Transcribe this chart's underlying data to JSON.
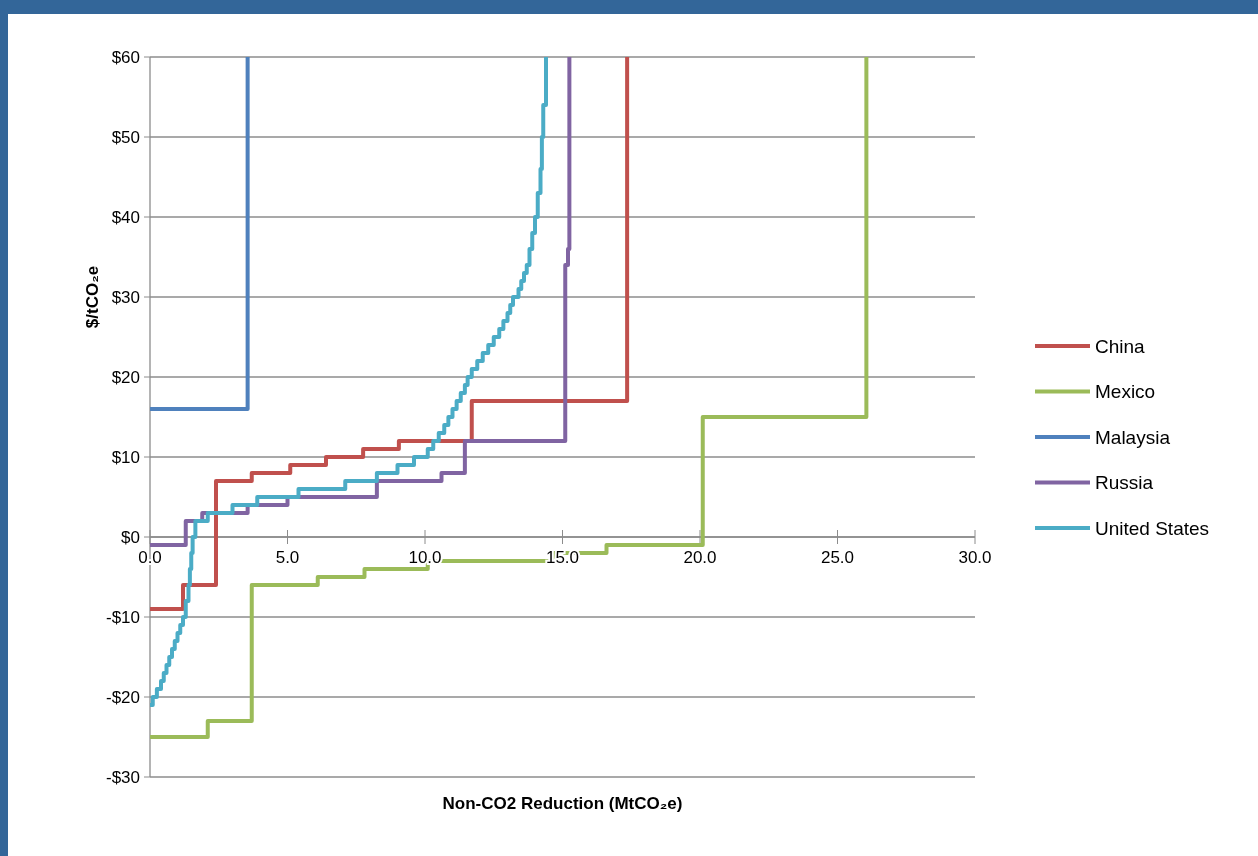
{
  "chart_data": {
    "type": "step",
    "xlabel": "Non-CO2 Reduction (MtCO₂e)",
    "ylabel": "$/tCO₂e",
    "xlim": [
      0,
      30
    ],
    "xticks": [
      {
        "value": 0,
        "label": "0.0"
      },
      {
        "value": 5,
        "label": "5.0"
      },
      {
        "value": 10,
        "label": "10.0"
      },
      {
        "value": 15,
        "label": "15.0"
      },
      {
        "value": 20,
        "label": "20.0"
      },
      {
        "value": 25,
        "label": "25.0"
      },
      {
        "value": 30,
        "label": "30.0"
      }
    ],
    "ylim": [
      -30,
      60
    ],
    "yticks": [
      {
        "value": -30,
        "label": "-$30"
      },
      {
        "value": -20,
        "label": "-$20"
      },
      {
        "value": -10,
        "label": "-$10"
      },
      {
        "value": 0,
        "label": "$0"
      },
      {
        "value": 10,
        "label": "$10"
      },
      {
        "value": 20,
        "label": "$20"
      },
      {
        "value": 30,
        "label": "$30"
      },
      {
        "value": 40,
        "label": "$40"
      },
      {
        "value": 50,
        "label": "$50"
      },
      {
        "value": 60,
        "label": "$60"
      }
    ],
    "grid": "y",
    "legend": "right",
    "series": [
      {
        "name": "China",
        "color": "#c0504d",
        "x": [
          0,
          1.2,
          2.4,
          3.7,
          5.1,
          6.4,
          7.75,
          9.05,
          11.7,
          17.35
        ],
        "values": [
          -9,
          -6,
          7,
          8,
          9,
          10,
          11,
          12,
          17,
          60
        ]
      },
      {
        "name": "Mexico",
        "color": "#9bbb59",
        "x": [
          0,
          2.1,
          3.7,
          6.1,
          7.8,
          10.1,
          14.7,
          16.6,
          20.1,
          26.05
        ],
        "values": [
          -25,
          -23,
          -6,
          -5,
          -4,
          -3,
          -2,
          -1,
          15,
          60
        ]
      },
      {
        "name": "Malaysia",
        "color": "#4f81bd",
        "x": [
          0,
          3.55
        ],
        "values": [
          16,
          60
        ]
      },
      {
        "name": "Russia",
        "color": "#8064a2",
        "x": [
          0,
          1.3,
          1.9,
          3.55,
          5.0,
          8.25,
          10.6,
          11.45,
          15.1,
          15.2,
          15.25
        ],
        "values": [
          -1,
          2,
          3,
          4,
          5,
          7,
          8,
          12,
          34,
          36,
          60
        ]
      },
      {
        "name": "United States",
        "color": "#4bacc6",
        "x": [
          0,
          0.1,
          0.25,
          0.4,
          0.5,
          0.6,
          0.7,
          0.8,
          0.9,
          1.0,
          1.1,
          1.2,
          1.3,
          1.4,
          1.45,
          1.5,
          1.55,
          1.65,
          2.1,
          3.0,
          3.9,
          5.4,
          7.1,
          8.25,
          9.0,
          9.6,
          10.1,
          10.3,
          10.5,
          10.7,
          10.85,
          11.0,
          11.15,
          11.3,
          11.45,
          11.55,
          11.7,
          11.9,
          12.1,
          12.3,
          12.5,
          12.7,
          12.85,
          13.0,
          13.1,
          13.2,
          13.4,
          13.5,
          13.6,
          13.7,
          13.8,
          13.9,
          14.0,
          14.1,
          14.2,
          14.25,
          14.3,
          14.4
        ],
        "values": [
          -21,
          -20,
          -19,
          -18,
          -17,
          -16,
          -15,
          -14,
          -13,
          -12,
          -11,
          -10,
          -8,
          -6,
          -4,
          -2,
          0,
          2,
          3,
          4,
          5,
          6,
          7,
          8,
          9,
          10,
          11,
          12,
          13,
          14,
          15,
          16,
          17,
          18,
          19,
          20,
          21,
          22,
          23,
          24,
          25,
          26,
          27,
          28,
          29,
          30,
          31,
          32,
          33,
          34,
          36,
          38,
          40,
          43,
          46,
          50,
          54,
          60
        ]
      }
    ]
  }
}
